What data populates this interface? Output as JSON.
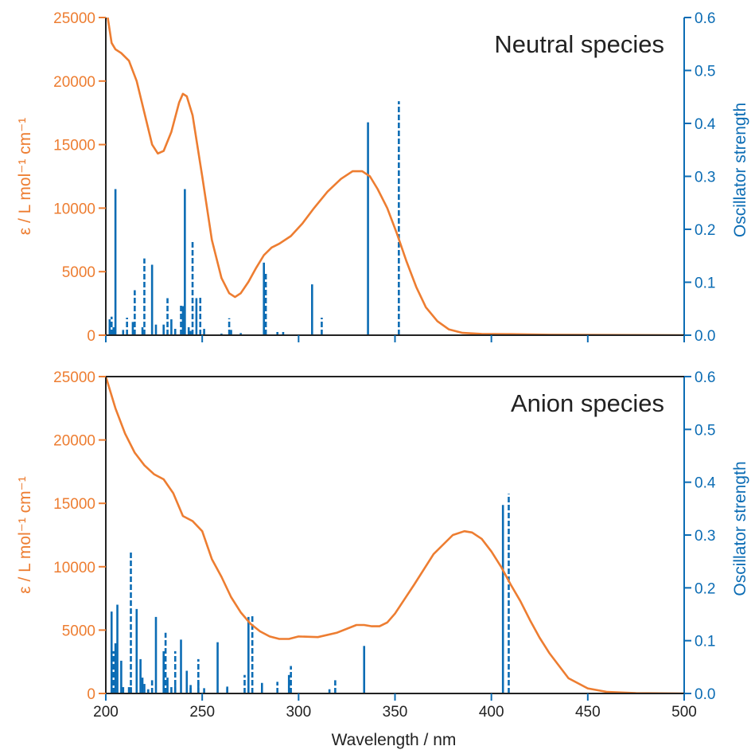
{
  "chart_data": [
    {
      "type": "line",
      "title": "Neutral species",
      "xlabel": "Wavelength / nm",
      "ylabel_left": "ε / L mol⁻¹ cm⁻¹",
      "ylabel_right": "Oscillator strength",
      "xlim": [
        200,
        500
      ],
      "ylim_left": [
        0,
        25000
      ],
      "ylim_right": [
        0,
        0.6
      ],
      "xticks": [
        "200",
        "250",
        "300",
        "350",
        "400",
        "450",
        "500"
      ],
      "yticks_left": [
        "0",
        "5000",
        "10000",
        "15000",
        "20000",
        "25000"
      ],
      "yticks_right": [
        "0.0",
        "0.1",
        "0.2",
        "0.3",
        "0.4",
        "0.5",
        "0.6"
      ],
      "grid": false,
      "series": [
        {
          "kind": "absorption-curve",
          "x": [
            201,
            203,
            205,
            208,
            212,
            216,
            220,
            224,
            227,
            230,
            234,
            238,
            240,
            242,
            245,
            250,
            255,
            260,
            264,
            267,
            270,
            274,
            278,
            282,
            286,
            290,
            296,
            302,
            308,
            315,
            322,
            328,
            333,
            337,
            341,
            346,
            351,
            356,
            361,
            366,
            372,
            378,
            385,
            395,
            410,
            430,
            460,
            500
          ],
          "y": [
            25000,
            23000,
            22500,
            22200,
            21600,
            20000,
            17500,
            15000,
            14300,
            14500,
            16000,
            18300,
            19000,
            18800,
            17300,
            12500,
            7500,
            4500,
            3300,
            3000,
            3300,
            4200,
            5300,
            6300,
            6900,
            7200,
            7800,
            8800,
            10000,
            11300,
            12300,
            12900,
            12900,
            12500,
            11500,
            10000,
            8000,
            5800,
            3800,
            2200,
            1100,
            450,
            180,
            100,
            80,
            40,
            20,
            0
          ]
        },
        {
          "kind": "oscillator-solid",
          "x": [
            202,
            204,
            205,
            209,
            214,
            219,
            224,
            226,
            230,
            234,
            236,
            240,
            241,
            243,
            244,
            247,
            251,
            260,
            265,
            270,
            282,
            289,
            292,
            307,
            336
          ],
          "f": [
            0.03,
            0.015,
            0.276,
            0.01,
            0.025,
            0.015,
            0.133,
            0.02,
            0.02,
            0.03,
            0.012,
            0.055,
            0.276,
            0.015,
            0.008,
            0.07,
            0.012,
            0.003,
            0.01,
            0.004,
            0.137,
            0.006,
            0.006,
            0.096,
            0.402
          ]
        },
        {
          "kind": "oscillator-dashed",
          "x": [
            203,
            211,
            215,
            220,
            232,
            239,
            245,
            249,
            264,
            283,
            312,
            352
          ],
          "f": [
            0.035,
            0.033,
            0.085,
            0.145,
            0.07,
            0.06,
            0.177,
            0.072,
            0.032,
            0.12,
            0.033,
            0.442
          ]
        }
      ]
    },
    {
      "type": "line",
      "title": "Anion species",
      "xlabel": "Wavelength / nm",
      "ylabel_left": "ε / L mol⁻¹ cm⁻¹",
      "ylabel_right": "Oscillator strength",
      "xlim": [
        200,
        500
      ],
      "ylim_left": [
        0,
        25000
      ],
      "ylim_right": [
        0,
        0.6
      ],
      "xticks": [
        "200",
        "250",
        "300",
        "350",
        "400",
        "450",
        "500"
      ],
      "yticks_left": [
        "0",
        "5000",
        "10000",
        "15000",
        "20000",
        "25000"
      ],
      "yticks_right": [
        "0.0",
        "0.1",
        "0.2",
        "0.3",
        "0.4",
        "0.5",
        "0.6"
      ],
      "grid": false,
      "series": [
        {
          "kind": "absorption-curve",
          "x": [
            198,
            205,
            210,
            215,
            220,
            225,
            230,
            235,
            240,
            245,
            250,
            255,
            260,
            265,
            270,
            275,
            280,
            285,
            290,
            295,
            300,
            310,
            320,
            330,
            334,
            338,
            342,
            346,
            350,
            360,
            370,
            380,
            386,
            390,
            395,
            400,
            405,
            410,
            415,
            420,
            425,
            430,
            440,
            450,
            460,
            475,
            500
          ],
          "y": [
            26000,
            22500,
            20500,
            19000,
            18000,
            17300,
            16900,
            15800,
            14000,
            13600,
            12800,
            10600,
            9200,
            7600,
            6400,
            5500,
            4900,
            4500,
            4300,
            4300,
            4500,
            4450,
            4800,
            5400,
            5400,
            5300,
            5300,
            5600,
            6300,
            8600,
            11000,
            12500,
            12800,
            12700,
            12200,
            11200,
            10000,
            8600,
            7300,
            5800,
            4400,
            3200,
            1200,
            400,
            120,
            30,
            0
          ]
        },
        {
          "kind": "oscillator-solid",
          "x": [
            203,
            205,
            206,
            208,
            209,
            212,
            213,
            216,
            218,
            219,
            220,
            222,
            226,
            230,
            232,
            234,
            236,
            239,
            242,
            244,
            248,
            251,
            258,
            263,
            274,
            281,
            295,
            316,
            334,
            406
          ],
          "f": [
            0.155,
            0.095,
            0.168,
            0.062,
            0.012,
            0.012,
            0.012,
            0.16,
            0.065,
            0.03,
            0.018,
            0.008,
            0.145,
            0.08,
            0.03,
            0.012,
            0.015,
            0.102,
            0.043,
            0.016,
            0.022,
            0.01,
            0.097,
            0.013,
            0.145,
            0.02,
            0.035,
            0.008,
            0.09,
            0.357
          ]
        },
        {
          "kind": "oscillator-dashed",
          "x": [
            204,
            213,
            224,
            231,
            236,
            244,
            248,
            263,
            272,
            276,
            289,
            296,
            319,
            409
          ],
          "f": [
            0.08,
            0.27,
            0.025,
            0.115,
            0.08,
            0.015,
            0.065,
            0.01,
            0.035,
            0.148,
            0.022,
            0.052,
            0.025,
            0.378
          ]
        }
      ]
    }
  ],
  "colors": {
    "absorption": "#ED7D31",
    "oscillator": "#0B6CB4",
    "axis": "#222222"
  }
}
